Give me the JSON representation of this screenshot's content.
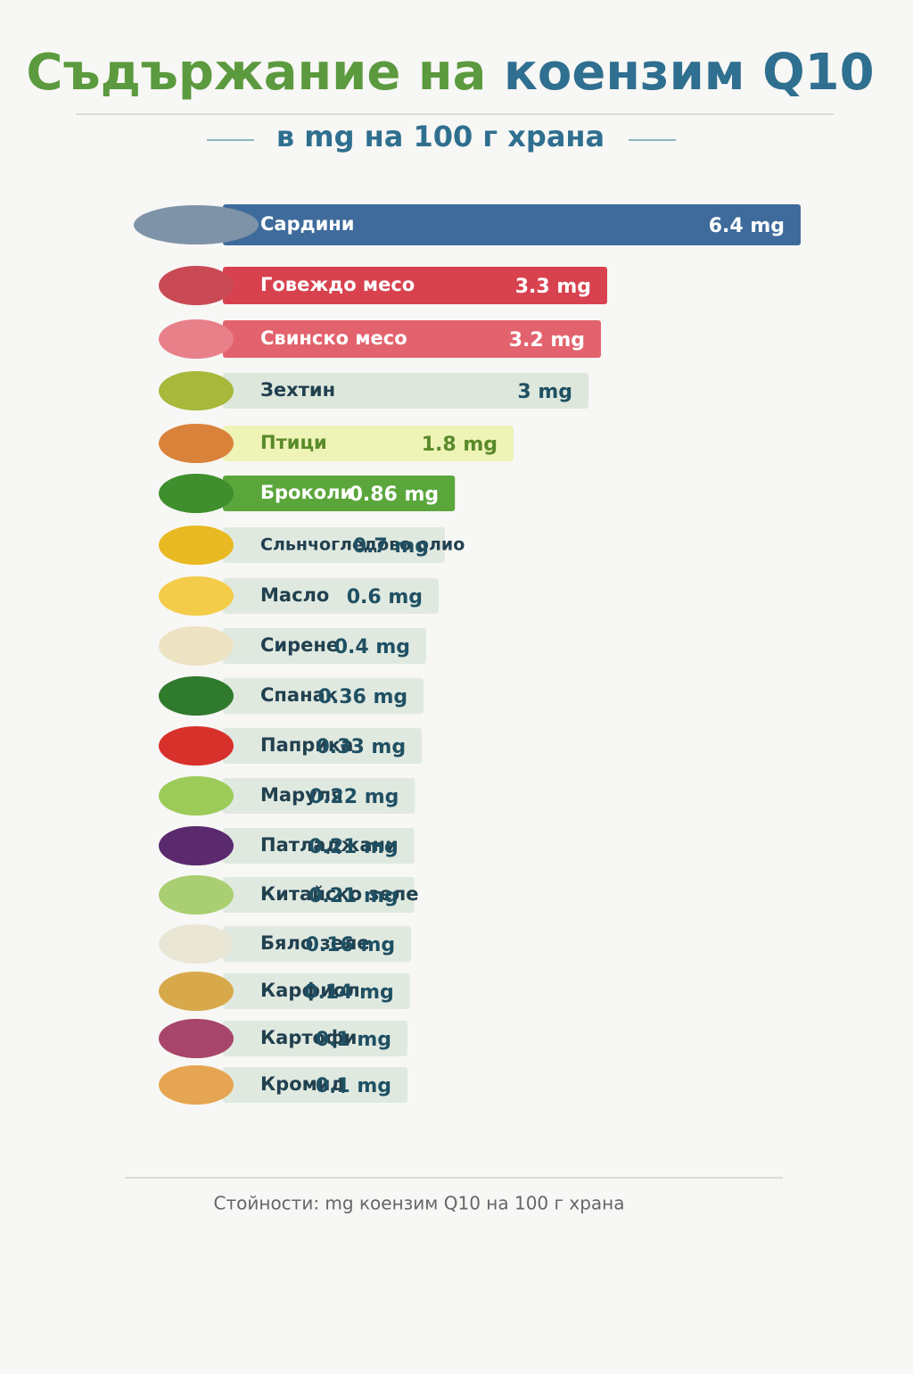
{
  "chart_data": {
    "type": "bar",
    "title": [
      "Съдържание на",
      "коензим Q10"
    ],
    "subtitle": "в mg на 100 г храна",
    "note": "Стойности: mg коензим Q10 на 100 г храна",
    "categories": [
      "Сардини",
      "Говеждо месо",
      "Свинско месо",
      "Зехтин",
      "Птици",
      "Броколи",
      "Сльнчогледово олио",
      "Масло",
      "Сирене",
      "Спанак",
      "Паприка",
      "Маруля",
      "Патладжани",
      "Китайско зеле",
      "Бяло зеле",
      "Карфиол",
      "Картофи",
      "Кромид"
    ],
    "values": [
      6.4,
      3.3,
      3.2,
      3,
      1.8,
      0.86,
      0.7,
      0.6,
      0.4,
      0.36,
      0.33,
      0.22,
      0.21,
      0.21,
      0.16,
      0.14,
      0.1,
      0.1
    ],
    "value_labels": [
      "6.4 mg",
      "3.3 mg",
      "3.2 mg",
      "3 mg",
      "1.8 mg",
      "0.86 mg",
      "0.7 mg",
      "0.6 mg",
      "0.4 mg",
      "0.36 mg",
      "0.33 mg",
      "0.22 mg",
      "0.21 mg",
      "0.21 mg",
      "0.16 mg",
      "0.14 mg",
      "0.1 mg",
      "0.1 mg"
    ],
    "colors": [
      "#3e6b9b",
      "#d8424f",
      "#e2636e",
      "#dde7dc",
      "#eef3b6",
      "#5aa63b",
      "#e0e9e0",
      "#e0e9e0",
      "#e0e9e0",
      "#e0e9e0",
      "#e0e9e0",
      "#e0e9e0",
      "#e0e9e0",
      "#e0e9e0",
      "#e0e9e0",
      "#e0e9e0",
      "#e0e9e0",
      "#e0e9e0"
    ],
    "icon_colors": [
      "#7f93a8",
      "#c94a55",
      "#e8808a",
      "#a7b83a",
      "#d9823a",
      "#3f8f2e",
      "#e8b923",
      "#f3cc4a",
      "#ede2c2",
      "#2f7a2c",
      "#d8312c",
      "#9ccb5a",
      "#5b2a6e",
      "#a9cf72",
      "#e9e6d6",
      "#d8a94a",
      "#a8456a",
      "#e6a552"
    ]
  }
}
